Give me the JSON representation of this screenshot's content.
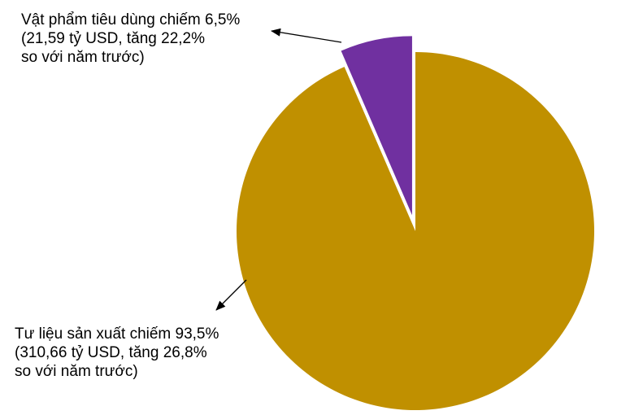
{
  "chart_data": {
    "type": "pie",
    "slices": [
      {
        "label_lines": [
          "Tư liệu sản xuất chiếm 93,5%",
          "(310,66 tỷ USD, tăng 26,8%",
          "so với năm trước)"
        ],
        "value": 93.5,
        "color": "#C09000",
        "exploded": false
      },
      {
        "label_lines": [
          "Vật phẩm tiêu dùng chiếm 6,5%",
          "(21,59 tỷ USD, tăng 22,2%",
          "so với năm trước)"
        ],
        "value": 6.5,
        "color": "#7030A0",
        "exploded": true
      }
    ],
    "start_angle_deg": 0,
    "direction": "clockwise",
    "legend": "none",
    "leader_lines": true
  }
}
